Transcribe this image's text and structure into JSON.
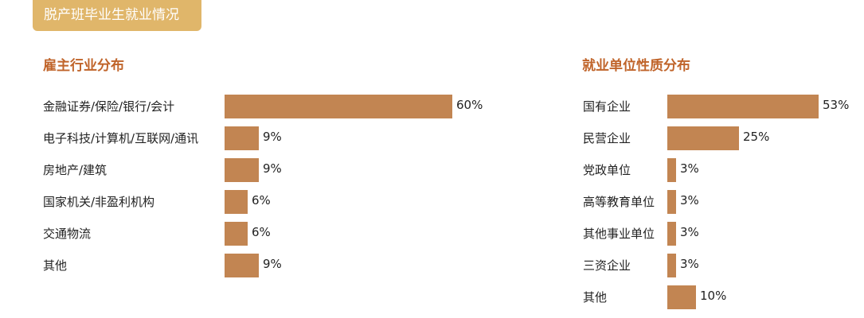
{
  "header": {
    "title": "脱产班毕业生就业情况"
  },
  "colors": {
    "bar": "#c28552",
    "title": "#c0642a",
    "header_bg": "#e0b66a"
  },
  "chart_data": [
    {
      "type": "bar",
      "orientation": "horizontal",
      "title": "雇主行业分布",
      "categories": [
        "金融证券/保险/银行/会计",
        "电子科技/计算机/互联网/通讯",
        "房地产/建筑",
        "国家机关/非盈利机构",
        "交通物流",
        "其他"
      ],
      "values": [
        60,
        9,
        9,
        6,
        6,
        9
      ],
      "labels": [
        "60%",
        "9%",
        "9%",
        "6%",
        "6%",
        "9%"
      ],
      "unit": "%"
    },
    {
      "type": "bar",
      "orientation": "horizontal",
      "title": "就业单位性质分布",
      "categories": [
        "国有企业",
        "民营企业",
        "党政单位",
        "高等教育单位",
        "其他事业单位",
        "三资企业",
        "其他"
      ],
      "values": [
        53,
        25,
        3,
        3,
        3,
        3,
        10
      ],
      "labels": [
        "53%",
        "25%",
        "3%",
        "3%",
        "3%",
        "3%",
        "10%"
      ],
      "unit": "%"
    }
  ]
}
